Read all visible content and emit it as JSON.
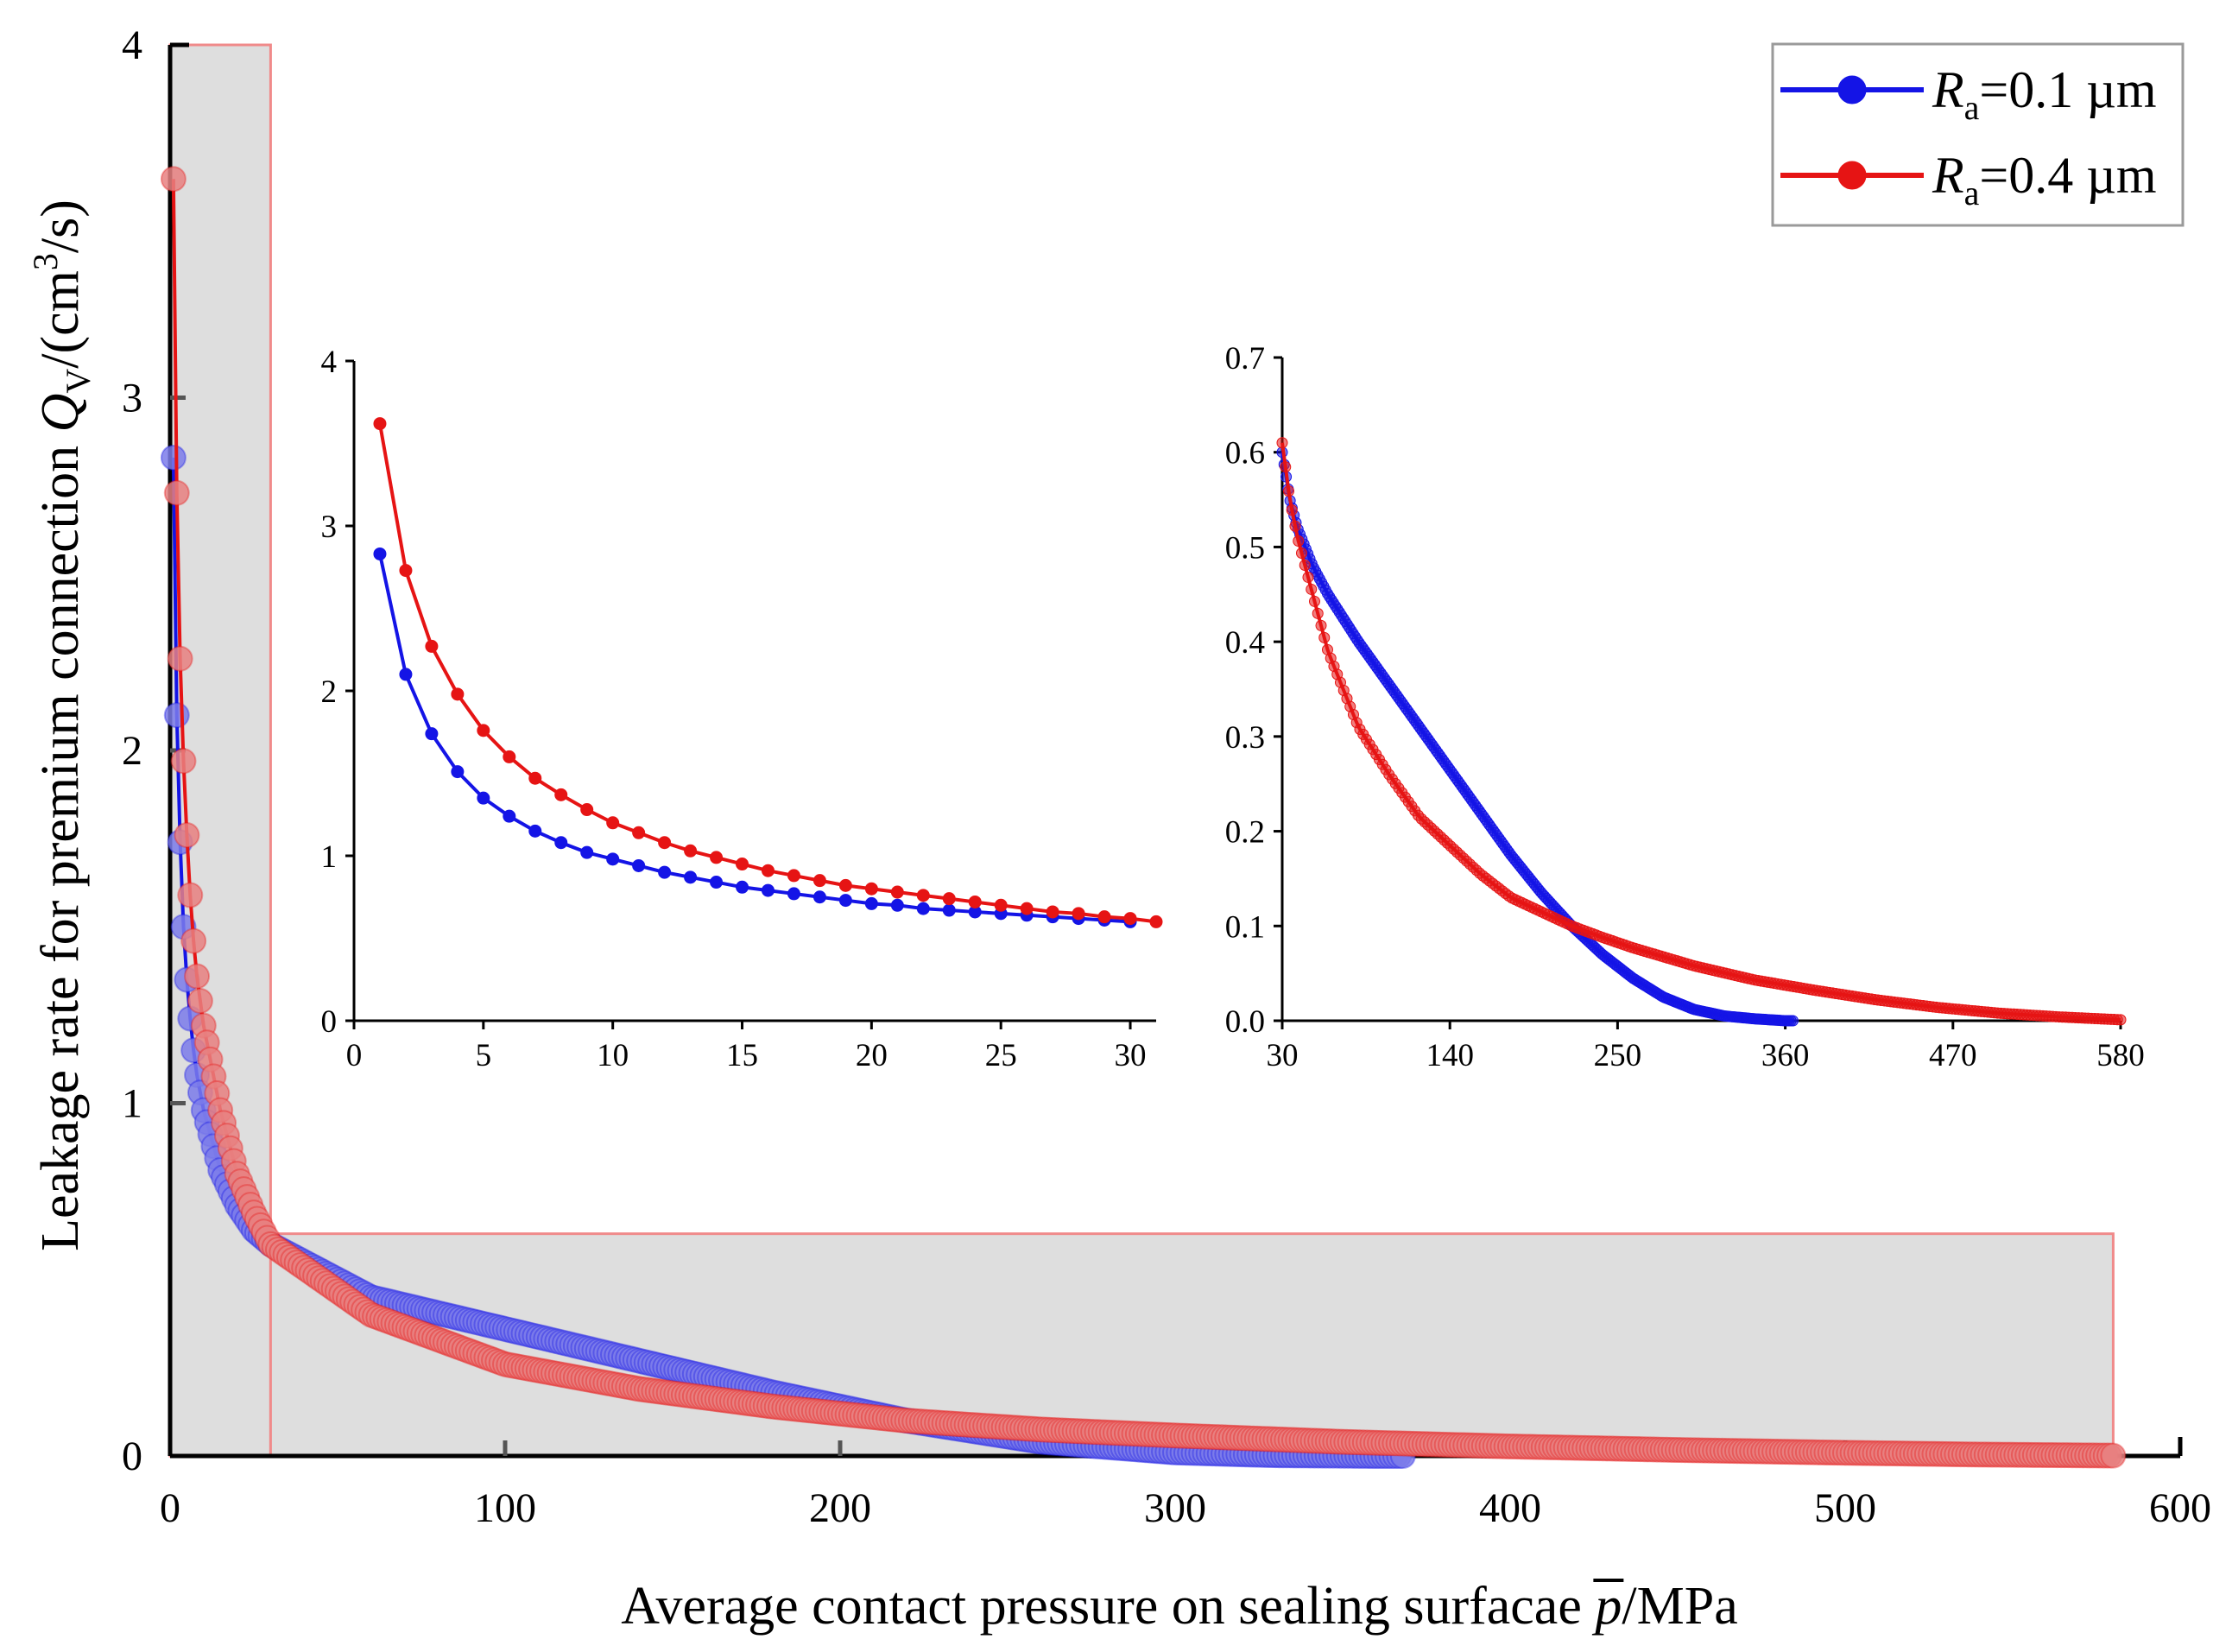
{
  "colors": {
    "blue": "#1414e6",
    "red": "#e61414",
    "blue_marker": "#7b7bea",
    "red_marker": "#e88080",
    "shade": "#dedede",
    "shade_border": "#f08a8a"
  },
  "chart_data": [
    {
      "id": "main",
      "type": "scatter",
      "title": "",
      "xlabel": "Average contact pressure on sealing surfacae p/MPa",
      "xlabel_parts": {
        "before": "Average contact pressure on sealing surfacae ",
        "var": "p",
        "after": "/MPa"
      },
      "ylabel": "Leakage rate for premium connection QV/(cm3/s)",
      "ylabel_parts": {
        "before": "Leakage rate for premium connection ",
        "var": "Q",
        "sub": "V",
        "unit_open": "/(cm",
        "sup": "3",
        "unit_close": "/s)"
      },
      "xlim": [
        0,
        600
      ],
      "ylim": [
        0,
        4
      ],
      "xticks": [
        0,
        100,
        200,
        300,
        400,
        500,
        600
      ],
      "yticks": [
        0,
        1,
        2,
        3,
        4
      ],
      "highlight_regions": [
        {
          "x": [
            0,
            30
          ],
          "y": [
            0,
            4
          ]
        },
        {
          "x": [
            30,
            580
          ],
          "y": [
            0,
            0.63
          ]
        }
      ],
      "series": [
        {
          "name": "Ra=0.1 µm",
          "color": "#1414e6",
          "x": [
            1,
            2,
            3,
            4,
            5,
            6,
            7,
            8,
            10,
            15,
            20,
            25,
            30,
            60,
            100,
            140,
            180,
            220,
            260,
            300,
            330,
            360,
            368
          ],
          "y": [
            2.83,
            2.1,
            1.74,
            1.5,
            1.35,
            1.24,
            1.15,
            1.08,
            0.98,
            0.81,
            0.71,
            0.64,
            0.6,
            0.45,
            0.36,
            0.27,
            0.18,
            0.1,
            0.04,
            0.01,
            0.002,
            0.0,
            0.0
          ]
        },
        {
          "name": "Ra=0.4 µm",
          "color": "#e61414",
          "x": [
            1,
            2,
            3,
            4,
            5,
            6,
            7,
            8,
            10,
            15,
            20,
            25,
            30,
            60,
            100,
            140,
            180,
            220,
            260,
            300,
            350,
            400,
            450,
            500,
            540,
            580
          ],
          "y": [
            3.62,
            2.73,
            2.26,
            1.97,
            1.76,
            1.59,
            1.46,
            1.36,
            1.22,
            0.98,
            0.8,
            0.69,
            0.6,
            0.4,
            0.26,
            0.19,
            0.14,
            0.1,
            0.075,
            0.058,
            0.04,
            0.027,
            0.017,
            0.009,
            0.004,
            0.001
          ]
        }
      ],
      "legend": {
        "position": "top-right",
        "entries": [
          {
            "var": "R",
            "sub": "a",
            "value": "=0.1 µm",
            "color": "#1414e6"
          },
          {
            "var": "R",
            "sub": "a",
            "value": "=0.4 µm",
            "color": "#e61414"
          }
        ]
      }
    },
    {
      "id": "inset-left",
      "type": "line",
      "xlim": [
        0,
        31
      ],
      "ylim": [
        0,
        4
      ],
      "xticks": [
        0,
        5,
        10,
        15,
        20,
        25,
        30
      ],
      "yticks": [
        0,
        1,
        2,
        3,
        4
      ],
      "series": [
        {
          "name": "Ra=0.1 µm",
          "color": "#1414e6",
          "x": [
            1,
            2,
            3,
            4,
            5,
            6,
            7,
            8,
            9,
            10,
            11,
            12,
            13,
            14,
            15,
            16,
            17,
            18,
            19,
            20,
            21,
            22,
            23,
            24,
            25,
            26,
            27,
            28,
            29,
            30
          ],
          "y": [
            2.83,
            2.1,
            1.74,
            1.51,
            1.35,
            1.24,
            1.15,
            1.08,
            1.02,
            0.98,
            0.94,
            0.9,
            0.87,
            0.84,
            0.81,
            0.79,
            0.77,
            0.75,
            0.73,
            0.71,
            0.7,
            0.68,
            0.67,
            0.66,
            0.65,
            0.64,
            0.63,
            0.62,
            0.61,
            0.6
          ]
        },
        {
          "name": "Ra=0.4 µm",
          "color": "#e61414",
          "x": [
            1,
            2,
            3,
            4,
            5,
            6,
            7,
            8,
            9,
            10,
            11,
            12,
            13,
            14,
            15,
            16,
            17,
            18,
            19,
            20,
            21,
            22,
            23,
            24,
            25,
            26,
            27,
            28,
            29,
            30,
            31
          ],
          "y": [
            3.62,
            2.73,
            2.27,
            1.98,
            1.76,
            1.6,
            1.47,
            1.37,
            1.28,
            1.2,
            1.14,
            1.08,
            1.03,
            0.99,
            0.95,
            0.91,
            0.88,
            0.85,
            0.82,
            0.8,
            0.78,
            0.76,
            0.74,
            0.72,
            0.7,
            0.68,
            0.66,
            0.65,
            0.63,
            0.62,
            0.6
          ]
        }
      ]
    },
    {
      "id": "inset-right",
      "type": "scatter",
      "xlim": [
        30,
        580
      ],
      "ylim": [
        0,
        0.7
      ],
      "xticks": [
        30,
        140,
        250,
        360,
        470,
        580
      ],
      "yticks": [
        0.0,
        0.1,
        0.2,
        0.3,
        0.4,
        0.5,
        0.6,
        0.7
      ],
      "ytick_labels": [
        "0.0",
        "0.1",
        "0.2",
        "0.3",
        "0.4",
        "0.5",
        "0.6",
        "0.7"
      ],
      "series": [
        {
          "name": "Ra=0.1 µm",
          "color": "#1414e6",
          "x": [
            30,
            35,
            40,
            50,
            60,
            80,
            100,
            120,
            140,
            160,
            180,
            200,
            220,
            240,
            260,
            280,
            300,
            320,
            340,
            360,
            365
          ],
          "y": [
            0.6,
            0.55,
            0.52,
            0.48,
            0.45,
            0.4,
            0.355,
            0.31,
            0.265,
            0.22,
            0.175,
            0.135,
            0.1,
            0.07,
            0.045,
            0.025,
            0.012,
            0.005,
            0.002,
            0.0,
            0.0
          ]
        },
        {
          "name": "Ra=0.4 µm",
          "color": "#e61414",
          "x": [
            30,
            35,
            40,
            50,
            60,
            80,
            100,
            120,
            140,
            160,
            180,
            200,
            220,
            240,
            260,
            300,
            340,
            380,
            420,
            460,
            500,
            540,
            580
          ],
          "y": [
            0.61,
            0.55,
            0.51,
            0.45,
            0.39,
            0.31,
            0.26,
            0.215,
            0.185,
            0.155,
            0.13,
            0.115,
            0.1,
            0.088,
            0.077,
            0.058,
            0.043,
            0.032,
            0.022,
            0.014,
            0.008,
            0.004,
            0.001
          ]
        }
      ]
    }
  ]
}
